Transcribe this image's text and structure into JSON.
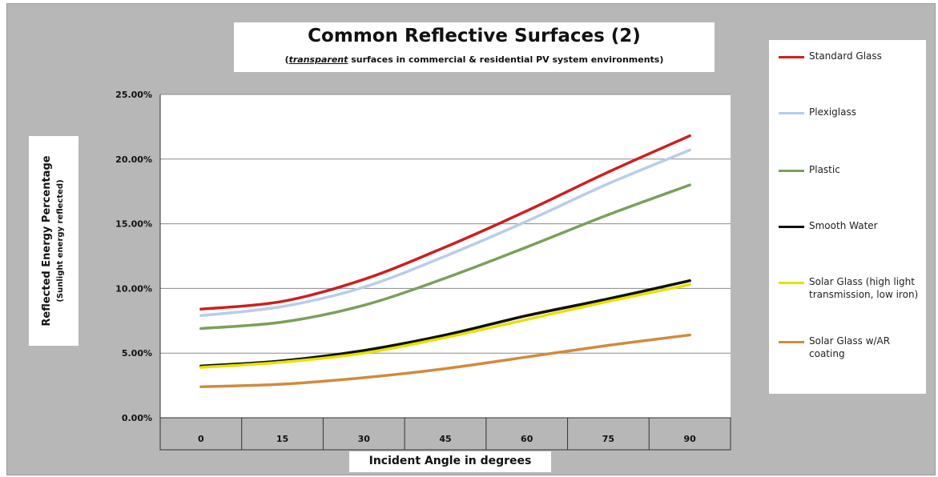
{
  "chart_data": {
    "type": "line",
    "title": "Common Reflective Surfaces (2)",
    "subtitle_em": "transparent",
    "subtitle_rest": " surfaces in commercial & residential PV system environments)",
    "subtitle_open": "(",
    "xlabel": "Incident Angle in degrees",
    "ylabel": "Reflected Energy Percentage",
    "ylabel_sub": "(Sunlight energy reflected)",
    "categories": [
      "0",
      "15",
      "30",
      "45",
      "60",
      "75",
      "90"
    ],
    "ylim": [
      0,
      25
    ],
    "yticks": [
      "0.00%",
      "5.00%",
      "10.00%",
      "15.00%",
      "20.00%",
      "25.00%"
    ],
    "grid": true,
    "legend_position": "right",
    "series": [
      {
        "name": "Standard Glass",
        "color": "#cc1f1f",
        "values": [
          8.4,
          9.0,
          10.7,
          13.2,
          16.0,
          19.0,
          21.8
        ]
      },
      {
        "name": "Plexiglass",
        "color": "#b9cde8",
        "values": [
          7.9,
          8.6,
          10.1,
          12.5,
          15.2,
          18.1,
          20.7
        ]
      },
      {
        "name": "Plastic",
        "color": "#7ba05b",
        "values": [
          6.9,
          7.4,
          8.7,
          10.8,
          13.2,
          15.7,
          18.0
        ]
      },
      {
        "name": "Smooth Water",
        "color": "#111111",
        "values": [
          4.0,
          4.4,
          5.2,
          6.4,
          7.9,
          9.2,
          10.6
        ]
      },
      {
        "name": "Solar Glass (high light transmission, low iron)",
        "color": "#e8e000",
        "values": [
          3.9,
          4.3,
          5.0,
          6.2,
          7.6,
          9.0,
          10.3
        ]
      },
      {
        "name": "Solar Glass w/AR coating",
        "color": "#d08b3c",
        "values": [
          2.4,
          2.6,
          3.1,
          3.8,
          4.7,
          5.6,
          6.4
        ]
      }
    ]
  }
}
